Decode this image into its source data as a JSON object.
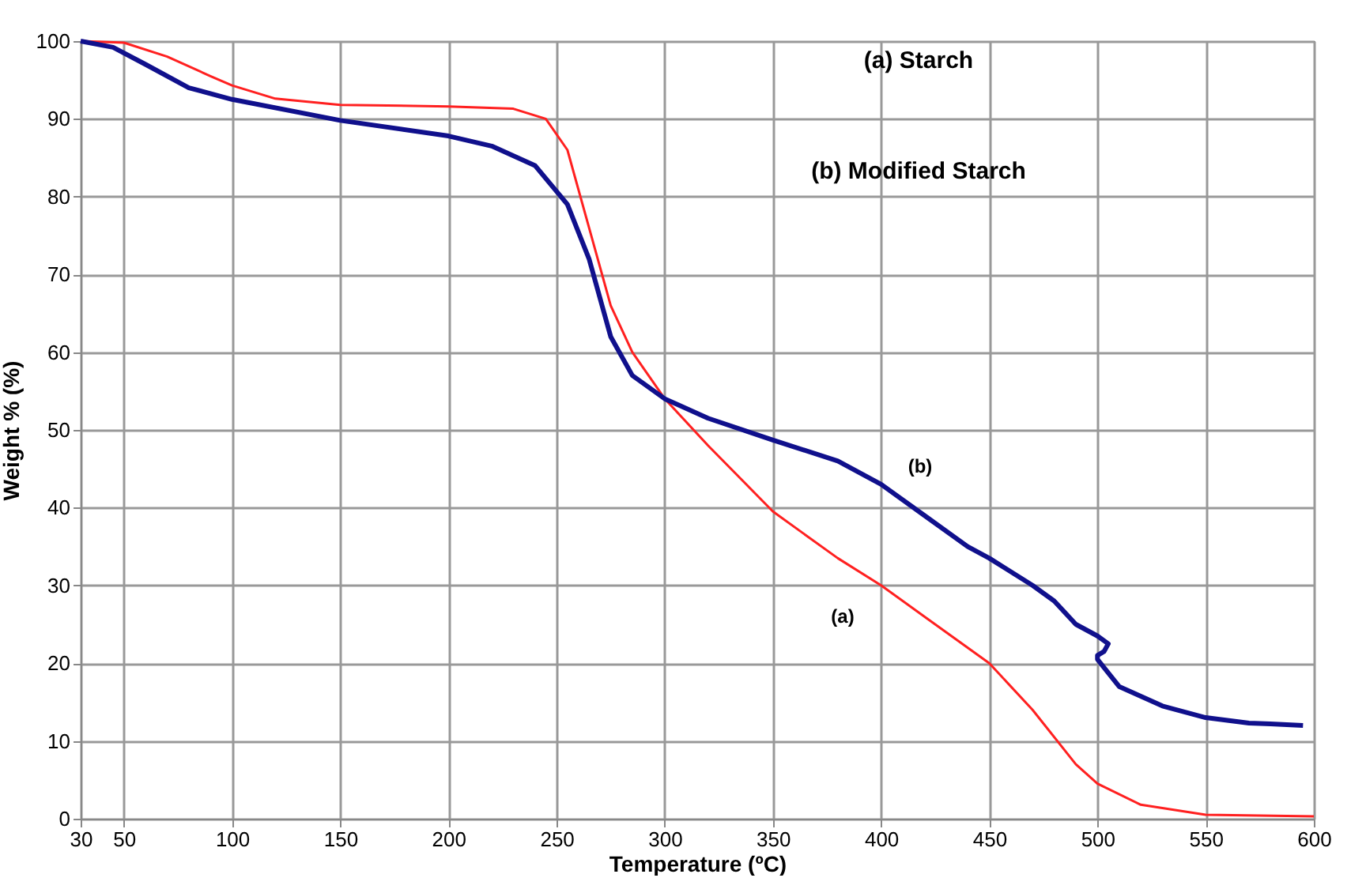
{
  "chart_data": {
    "type": "line",
    "xlabel": "Temperature (ºC)",
    "ylabel": "Weight % (%)",
    "xlim": [
      30,
      600
    ],
    "xticks": [
      30,
      50,
      100,
      150,
      200,
      250,
      300,
      350,
      400,
      450,
      500,
      550,
      600
    ],
    "ylim": [
      0,
      100
    ],
    "yticks": [
      0,
      10,
      20,
      30,
      40,
      50,
      60,
      70,
      80,
      90,
      100
    ],
    "grid": true,
    "marker": "none",
    "line_style": "solid",
    "series": [
      {
        "color": "#ff2020",
        "x": [
          30,
          50,
          70,
          90,
          100,
          120,
          150,
          200,
          230,
          245,
          255,
          265,
          275,
          285,
          300,
          320,
          350,
          380,
          400,
          420,
          450,
          470,
          490,
          500,
          520,
          550,
          600
        ],
        "values": [
          100,
          99.8,
          98,
          95.5,
          94.3,
          92.6,
          91.8,
          91.6,
          91.3,
          90,
          86,
          76,
          66,
          60,
          54,
          48,
          39.5,
          33.5,
          30,
          26,
          20,
          14,
          7,
          4.5,
          1.8,
          0.5,
          0.3
        ]
      },
      {
        "color": "#10108c",
        "x": [
          30,
          45,
          60,
          80,
          100,
          150,
          200,
          220,
          240,
          255,
          265,
          275,
          285,
          300,
          320,
          350,
          380,
          400,
          420,
          440,
          450,
          470,
          480,
          490,
          500,
          505,
          503,
          500,
          500,
          510,
          530,
          550,
          570,
          580,
          595
        ],
        "values": [
          100,
          99.2,
          97,
          94,
          92.5,
          89.8,
          87.8,
          86.5,
          84,
          79,
          72,
          62,
          57,
          54,
          51.5,
          48.7,
          46,
          43,
          39,
          35,
          33.5,
          30,
          28,
          25,
          23.5,
          22.5,
          21.5,
          21,
          20.5,
          17,
          14.5,
          13,
          12.3,
          12.2,
          12
        ]
      }
    ],
    "annotations": [
      "(a) Starch",
      "(b) Modified Starch",
      "(a)",
      "(b)"
    ]
  }
}
